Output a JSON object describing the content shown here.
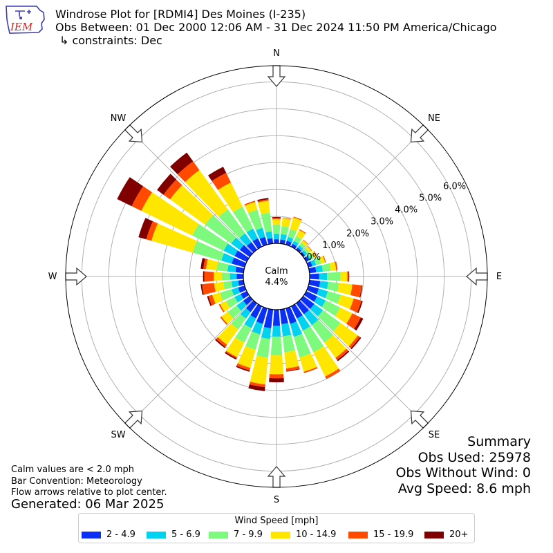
{
  "header": {
    "title": "Windrose Plot for [RDMI4] Des Moines (I-235)",
    "obs_between": "Obs Between: 01 Dec 2000 12:06 AM - 31 Dec 2024 11:50 PM America/Chicago",
    "constraints": "↳ constraints: Dec",
    "logo_text": "IEM"
  },
  "summary": {
    "heading": "Summary",
    "obs_used": "Obs Used: 25978",
    "obs_without_wind": "Obs Without Wind: 0",
    "avg_speed": "Avg Speed: 8.6 mph"
  },
  "notes": {
    "calm_note": "Calm values are < 2.0 mph",
    "bar_convention": "Bar Convention: Meteorology",
    "flow_arrows": "Flow arrows relative to plot center.",
    "generated": "Generated: 06 Mar 2025"
  },
  "colors": {
    "bins": [
      "#0a2ff5",
      "#00d2f0",
      "#7dfa7d",
      "#ffe600",
      "#ff4a00",
      "#800000"
    ],
    "grid": "#b0b0b0"
  },
  "chart_data": {
    "type": "windrose",
    "calm_label": "Calm",
    "calm_value": "4.4%",
    "calm_percent": 4.4,
    "radial_ticks": [
      0.0,
      1.0,
      2.0,
      3.0,
      4.0,
      5.0,
      6.0
    ],
    "radial_tick_labels": [
      "0.0%",
      "1.0%",
      "2.0%",
      "3.0%",
      "4.0%",
      "5.0%",
      "6.0%"
    ],
    "radial_max": 6.6,
    "directions": [
      "N",
      "NE",
      "E",
      "SE",
      "S",
      "SW",
      "W",
      "NW"
    ],
    "legend_title": "Wind Speed [mph]",
    "bins": [
      "2 - 4.9",
      "5 - 6.9",
      "7 - 9.9",
      "10 - 14.9",
      "15 - 19.9",
      "20+"
    ],
    "sectors": [
      {
        "dir": 0,
        "values": [
          0.15,
          0.2,
          0.35,
          0.2,
          0.05,
          0.03
        ]
      },
      {
        "dir": 10,
        "values": [
          0.15,
          0.2,
          0.3,
          0.3,
          0.02,
          0.0
        ]
      },
      {
        "dir": 20,
        "values": [
          0.15,
          0.15,
          0.3,
          0.45,
          0.03,
          0.0
        ]
      },
      {
        "dir": 30,
        "values": [
          0.12,
          0.12,
          0.2,
          0.25,
          0.03,
          0.0
        ]
      },
      {
        "dir": 40,
        "values": [
          0.1,
          0.1,
          0.12,
          0.12,
          0.02,
          0.0
        ]
      },
      {
        "dir": 50,
        "values": [
          0.08,
          0.1,
          0.1,
          0.1,
          0.02,
          0.0
        ]
      },
      {
        "dir": 60,
        "values": [
          0.1,
          0.1,
          0.12,
          0.12,
          0.02,
          0.0
        ]
      },
      {
        "dir": 70,
        "values": [
          0.15,
          0.15,
          0.2,
          0.15,
          0.03,
          0.0
        ]
      },
      {
        "dir": 80,
        "values": [
          0.25,
          0.25,
          0.3,
          0.2,
          0.05,
          0.0
        ]
      },
      {
        "dir": 90,
        "values": [
          0.35,
          0.3,
          0.5,
          0.25,
          0.05,
          0.02
        ]
      },
      {
        "dir": 100,
        "values": [
          0.4,
          0.3,
          0.4,
          0.5,
          0.35,
          0.03
        ]
      },
      {
        "dir": 110,
        "values": [
          0.4,
          0.35,
          0.5,
          0.5,
          0.3,
          0.05
        ]
      },
      {
        "dir": 120,
        "values": [
          0.45,
          0.35,
          0.6,
          0.5,
          0.35,
          0.1
        ]
      },
      {
        "dir": 130,
        "values": [
          0.5,
          0.4,
          0.8,
          0.8,
          0.1,
          0.05
        ]
      },
      {
        "dir": 140,
        "values": [
          0.5,
          0.5,
          0.8,
          0.7,
          0.1,
          0.05
        ]
      },
      {
        "dir": 150,
        "values": [
          0.5,
          0.5,
          0.9,
          1.0,
          0.1,
          0.0
        ]
      },
      {
        "dir": 160,
        "values": [
          0.6,
          0.5,
          0.8,
          0.55,
          0.05,
          0.0
        ]
      },
      {
        "dir": 170,
        "values": [
          0.55,
          0.45,
          0.6,
          0.6,
          0.1,
          0.02
        ]
      },
      {
        "dir": 180,
        "values": [
          0.6,
          0.4,
          0.7,
          0.7,
          0.15,
          0.15
        ]
      },
      {
        "dir": 190,
        "values": [
          0.7,
          0.4,
          0.7,
          1.0,
          0.1,
          0.15
        ]
      },
      {
        "dir": 200,
        "values": [
          0.6,
          0.4,
          0.6,
          0.7,
          0.1,
          0.05
        ]
      },
      {
        "dir": 210,
        "values": [
          0.5,
          0.4,
          0.6,
          0.6,
          0.05,
          0.05
        ]
      },
      {
        "dir": 220,
        "values": [
          0.4,
          0.3,
          0.5,
          0.7,
          0.1,
          0.05
        ]
      },
      {
        "dir": 230,
        "values": [
          0.3,
          0.3,
          0.4,
          0.3,
          0.05,
          0.0
        ]
      },
      {
        "dir": 240,
        "values": [
          0.25,
          0.25,
          0.35,
          0.25,
          0.05,
          0.0
        ]
      },
      {
        "dir": 250,
        "values": [
          0.25,
          0.25,
          0.45,
          0.3,
          0.15,
          0.05
        ]
      },
      {
        "dir": 260,
        "values": [
          0.2,
          0.25,
          0.3,
          0.35,
          0.45,
          0.05
        ]
      },
      {
        "dir": 270,
        "values": [
          0.25,
          0.25,
          0.3,
          0.3,
          0.35,
          0.05
        ]
      },
      {
        "dir": 280,
        "values": [
          0.3,
          0.3,
          0.4,
          0.4,
          0.1,
          0.1
        ]
      },
      {
        "dir": 290,
        "values": [
          0.5,
          0.4,
          1.1,
          1.6,
          0.2,
          0.3
        ]
      },
      {
        "dir": 300,
        "values": [
          0.5,
          0.45,
          1.3,
          2.1,
          0.4,
          0.6
        ]
      },
      {
        "dir": 310,
        "values": [
          0.45,
          0.4,
          1.2,
          1.6,
          0.3,
          0.3
        ]
      },
      {
        "dir": 320,
        "values": [
          0.35,
          0.4,
          1.1,
          1.8,
          0.4,
          0.4
        ]
      },
      {
        "dir": 330,
        "values": [
          0.35,
          0.4,
          0.9,
          1.0,
          0.4,
          0.25
        ]
      },
      {
        "dir": 340,
        "values": [
          0.3,
          0.35,
          0.7,
          0.3,
          0.05,
          0.0
        ]
      },
      {
        "dir": 350,
        "values": [
          0.2,
          0.25,
          0.7,
          0.45,
          0.05,
          0.05
        ]
      }
    ]
  }
}
